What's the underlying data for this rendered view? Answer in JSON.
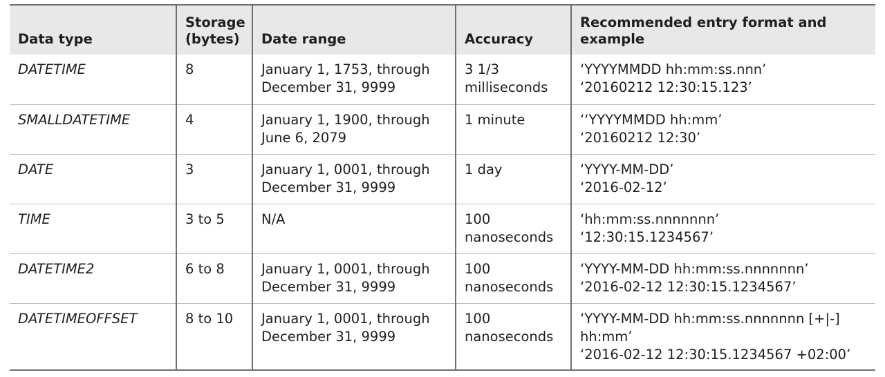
{
  "table": {
    "headers": [
      [
        "Data type"
      ],
      [
        "Storage",
        "(bytes)"
      ],
      [
        "Date range"
      ],
      [
        "Accuracy"
      ],
      [
        "Recommended entry format and",
        "example"
      ]
    ],
    "rows": [
      {
        "type": "DATETIME",
        "storage": "8",
        "range": [
          "January 1, 1753, through",
          "December 31, 9999"
        ],
        "accuracy": [
          "3 1/3",
          "milliseconds"
        ],
        "format": [
          "‘YYYYMMDD hh:mm:ss.nnn’",
          "‘20160212 12:30:15.123’"
        ]
      },
      {
        "type": "SMALLDATETIME",
        "storage": "4",
        "range": [
          "January 1, 1900, through",
          "June 6, 2079"
        ],
        "accuracy": [
          "1 minute"
        ],
        "format": [
          "‘‘YYYYMMDD hh:mm’",
          "‘20160212 12:30’"
        ]
      },
      {
        "type": "DATE",
        "storage": "3",
        "range": [
          "January 1, 0001, through",
          "December 31, 9999"
        ],
        "accuracy": [
          "1 day"
        ],
        "format": [
          "‘YYYY-MM-DD’",
          "‘2016-02-12’"
        ]
      },
      {
        "type": "TIME",
        "storage": "3 to 5",
        "range": [
          "N/A"
        ],
        "accuracy": [
          "100",
          "nanoseconds"
        ],
        "format": [
          "‘hh:mm:ss.nnnnnnn’",
          "‘12:30:15.1234567’"
        ]
      },
      {
        "type": "DATETIME2",
        "storage": "6 to 8",
        "range": [
          "January 1, 0001, through",
          "December 31, 9999"
        ],
        "accuracy": [
          "100",
          "nanoseconds"
        ],
        "format": [
          "‘YYYY-MM-DD hh:mm:ss.nnnnnnn’",
          "‘2016-02-12 12:30:15.1234567’"
        ]
      },
      {
        "type": "DATETIMEOFFSET",
        "storage": "8 to 10",
        "range": [
          "January 1, 0001, through",
          "December 31, 9999"
        ],
        "accuracy": [
          "100",
          "nanoseconds"
        ],
        "format": [
          "‘YYYY-MM-DD hh:mm:ss.nnnnnnn [+|-]",
          "hh:mm’",
          "‘2016-02-12 12:30:15.1234567 +02:00’"
        ]
      }
    ]
  }
}
